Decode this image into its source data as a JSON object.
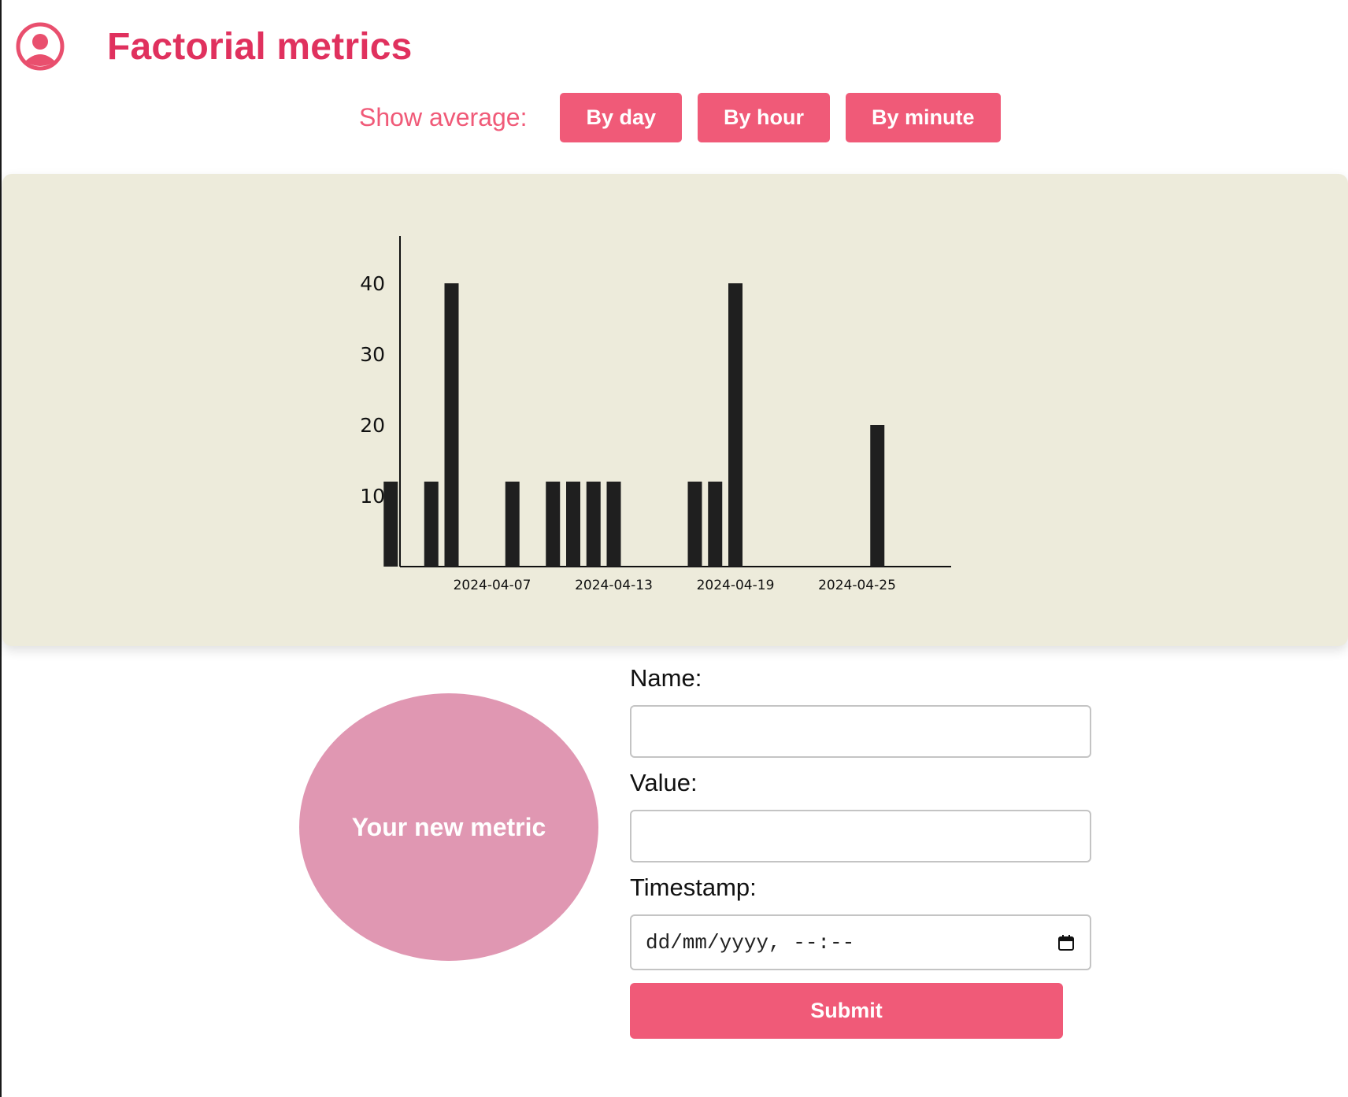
{
  "header": {
    "title": "Factorial metrics",
    "logo_icon": "user-circle-icon"
  },
  "toolbar": {
    "label": "Show average:",
    "buttons": [
      "By day",
      "By hour",
      "By minute"
    ]
  },
  "chart_data": {
    "type": "bar",
    "title": "",
    "xlabel": "",
    "ylabel": "",
    "x_ticks": [
      "2024-04-07",
      "2024-04-13",
      "2024-04-19",
      "2024-04-25"
    ],
    "y_ticks": [
      10,
      20,
      30,
      40
    ],
    "ylim": [
      0,
      44
    ],
    "grid": false,
    "bar_color": "#1f1f1f",
    "bars": [
      {
        "date": "2024-04-02",
        "value": 12
      },
      {
        "date": "2024-04-04",
        "value": 12
      },
      {
        "date": "2024-04-05",
        "value": 40
      },
      {
        "date": "2024-04-08",
        "value": 12
      },
      {
        "date": "2024-04-10",
        "value": 12
      },
      {
        "date": "2024-04-11",
        "value": 12
      },
      {
        "date": "2024-04-12",
        "value": 12
      },
      {
        "date": "2024-04-13",
        "value": 12
      },
      {
        "date": "2024-04-17",
        "value": 12
      },
      {
        "date": "2024-04-18",
        "value": 12
      },
      {
        "date": "2024-04-19",
        "value": 40
      },
      {
        "date": "2024-04-26",
        "value": 20
      }
    ]
  },
  "bubble": {
    "text": "Your new metric",
    "color": "#e097b2"
  },
  "form": {
    "name_label": "Name:",
    "name_value": "",
    "value_label": "Value:",
    "value_value": "",
    "timestamp_label": "Timestamp:",
    "timestamp_placeholder": "dd/mm/yyyy, --:--",
    "calendar_icon": "calendar-icon",
    "submit_label": "Submit"
  },
  "colors": {
    "accent": "#f05a78",
    "title": "#e0315e",
    "panel": "#edebdb"
  }
}
